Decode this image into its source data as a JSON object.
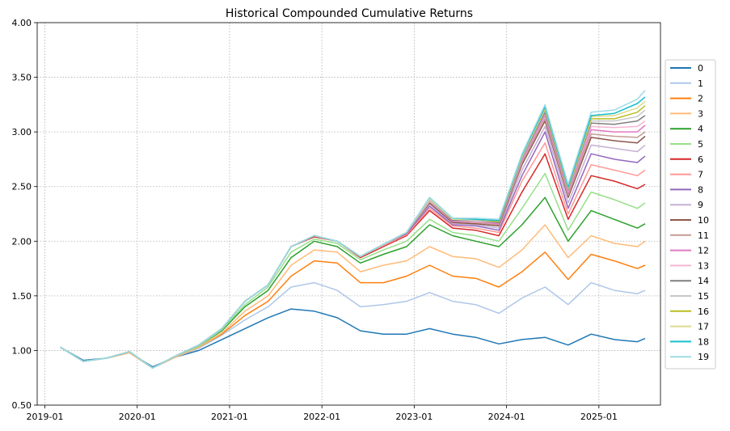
{
  "chart_data": {
    "type": "line",
    "title": "Historical Compounded Cumulative Returns",
    "xlabel": "",
    "ylabel": "",
    "xlim": [
      "2018-12-01",
      "2025-09-01"
    ],
    "ylim": [
      0.5,
      4.0
    ],
    "x_ticks": [
      "2019-01",
      "2020-01",
      "2021-01",
      "2022-01",
      "2023-01",
      "2024-01",
      "2025-01"
    ],
    "y_ticks": [
      "0.50",
      "1.00",
      "1.50",
      "2.00",
      "2.50",
      "3.00",
      "3.50",
      "4.00"
    ],
    "grid": true,
    "legend_position": "right",
    "x": [
      "2019-03",
      "2019-06",
      "2019-09",
      "2019-12",
      "2020-03",
      "2020-06",
      "2020-09",
      "2020-12",
      "2021-03",
      "2021-06",
      "2021-09",
      "2021-12",
      "2022-03",
      "2022-06",
      "2022-09",
      "2022-12",
      "2023-03",
      "2023-06",
      "2023-09",
      "2023-12",
      "2024-03",
      "2024-06",
      "2024-09",
      "2024-12",
      "2025-03",
      "2025-06",
      "2025-07"
    ],
    "series": [
      {
        "name": "0",
        "color": "#1f77b4",
        "values": [
          1.03,
          0.91,
          0.93,
          0.98,
          0.85,
          0.94,
          1.0,
          1.1,
          1.2,
          1.3,
          1.38,
          1.36,
          1.3,
          1.18,
          1.15,
          1.15,
          1.2,
          1.15,
          1.12,
          1.06,
          1.1,
          1.12,
          1.05,
          1.15,
          1.1,
          1.08,
          1.11
        ]
      },
      {
        "name": "1",
        "color": "#aec7e8",
        "values": [
          1.03,
          0.9,
          0.93,
          0.98,
          0.84,
          0.94,
          1.02,
          1.14,
          1.28,
          1.4,
          1.58,
          1.62,
          1.55,
          1.4,
          1.42,
          1.45,
          1.53,
          1.45,
          1.42,
          1.34,
          1.48,
          1.58,
          1.42,
          1.62,
          1.55,
          1.52,
          1.55
        ]
      },
      {
        "name": "2",
        "color": "#ff7f0e",
        "values": [
          1.03,
          0.9,
          0.93,
          0.98,
          0.84,
          0.94,
          1.03,
          1.15,
          1.32,
          1.45,
          1.68,
          1.82,
          1.8,
          1.62,
          1.62,
          1.68,
          1.78,
          1.68,
          1.66,
          1.58,
          1.72,
          1.9,
          1.65,
          1.88,
          1.82,
          1.75,
          1.78
        ]
      },
      {
        "name": "3",
        "color": "#ffbb78",
        "values": [
          1.03,
          0.9,
          0.93,
          0.98,
          0.84,
          0.94,
          1.03,
          1.16,
          1.36,
          1.5,
          1.78,
          1.92,
          1.9,
          1.72,
          1.78,
          1.82,
          1.95,
          1.86,
          1.84,
          1.76,
          1.92,
          2.15,
          1.85,
          2.05,
          1.98,
          1.95,
          2.0
        ]
      },
      {
        "name": "4",
        "color": "#2ca02c",
        "values": [
          1.03,
          0.9,
          0.93,
          0.99,
          0.84,
          0.95,
          1.04,
          1.18,
          1.4,
          1.55,
          1.85,
          2.0,
          1.95,
          1.8,
          1.88,
          1.95,
          2.15,
          2.05,
          2.0,
          1.95,
          2.15,
          2.4,
          2.0,
          2.28,
          2.2,
          2.12,
          2.16
        ]
      },
      {
        "name": "5",
        "color": "#98df8a",
        "values": [
          1.03,
          0.9,
          0.93,
          0.99,
          0.84,
          0.95,
          1.04,
          1.19,
          1.42,
          1.58,
          1.9,
          2.02,
          1.98,
          1.83,
          1.92,
          2.0,
          2.2,
          2.08,
          2.05,
          2.0,
          2.3,
          2.62,
          2.1,
          2.45,
          2.38,
          2.3,
          2.35
        ]
      },
      {
        "name": "6",
        "color": "#d62728",
        "values": [
          1.03,
          0.9,
          0.93,
          0.99,
          0.84,
          0.95,
          1.05,
          1.2,
          1.45,
          1.6,
          1.95,
          2.04,
          2.0,
          1.85,
          1.95,
          2.05,
          2.28,
          2.12,
          2.1,
          2.05,
          2.45,
          2.8,
          2.2,
          2.6,
          2.55,
          2.48,
          2.52
        ]
      },
      {
        "name": "7",
        "color": "#ff9896",
        "values": [
          1.03,
          0.9,
          0.93,
          0.99,
          0.84,
          0.95,
          1.05,
          1.2,
          1.45,
          1.6,
          1.95,
          2.05,
          2.0,
          1.86,
          1.96,
          2.06,
          2.3,
          2.14,
          2.12,
          2.08,
          2.55,
          2.9,
          2.25,
          2.7,
          2.65,
          2.6,
          2.65
        ]
      },
      {
        "name": "8",
        "color": "#9467bd",
        "values": [
          1.03,
          0.9,
          0.93,
          0.99,
          0.84,
          0.95,
          1.05,
          1.2,
          1.45,
          1.6,
          1.95,
          2.05,
          2.0,
          1.86,
          1.97,
          2.07,
          2.32,
          2.15,
          2.14,
          2.1,
          2.6,
          3.0,
          2.3,
          2.8,
          2.75,
          2.72,
          2.78
        ]
      },
      {
        "name": "9",
        "color": "#c5b0d5",
        "values": [
          1.03,
          0.9,
          0.93,
          0.99,
          0.84,
          0.95,
          1.05,
          1.2,
          1.45,
          1.6,
          1.95,
          2.05,
          2.0,
          1.86,
          1.97,
          2.08,
          2.34,
          2.16,
          2.15,
          2.12,
          2.65,
          3.05,
          2.35,
          2.88,
          2.85,
          2.82,
          2.88
        ]
      },
      {
        "name": "10",
        "color": "#8c564b",
        "values": [
          1.03,
          0.9,
          0.93,
          0.99,
          0.84,
          0.95,
          1.05,
          1.2,
          1.45,
          1.6,
          1.95,
          2.05,
          2.0,
          1.86,
          1.97,
          2.08,
          2.35,
          2.17,
          2.16,
          2.14,
          2.7,
          3.1,
          2.4,
          2.95,
          2.92,
          2.9,
          2.96
        ]
      },
      {
        "name": "11",
        "color": "#c49c94",
        "values": [
          1.03,
          0.9,
          0.93,
          0.99,
          0.84,
          0.95,
          1.05,
          1.2,
          1.45,
          1.6,
          1.95,
          2.05,
          2.0,
          1.86,
          1.97,
          2.08,
          2.36,
          2.18,
          2.17,
          2.15,
          2.72,
          3.12,
          2.42,
          2.98,
          2.96,
          2.95,
          3.0
        ]
      },
      {
        "name": "12",
        "color": "#e377c2",
        "values": [
          1.03,
          0.9,
          0.93,
          0.99,
          0.84,
          0.95,
          1.05,
          1.2,
          1.45,
          1.6,
          1.95,
          2.05,
          2.0,
          1.86,
          1.97,
          2.08,
          2.37,
          2.18,
          2.18,
          2.16,
          2.74,
          3.15,
          2.44,
          3.02,
          3.0,
          3.0,
          3.06
        ]
      },
      {
        "name": "13",
        "color": "#f7b6d2",
        "values": [
          1.03,
          0.9,
          0.93,
          0.99,
          0.84,
          0.95,
          1.05,
          1.2,
          1.45,
          1.6,
          1.95,
          2.05,
          2.0,
          1.86,
          1.97,
          2.08,
          2.37,
          2.19,
          2.18,
          2.17,
          2.75,
          3.17,
          2.46,
          3.05,
          3.04,
          3.05,
          3.1
        ]
      },
      {
        "name": "14",
        "color": "#7f7f7f",
        "values": [
          1.03,
          0.9,
          0.93,
          0.99,
          0.84,
          0.95,
          1.05,
          1.2,
          1.45,
          1.6,
          1.95,
          2.05,
          2.0,
          1.86,
          1.97,
          2.08,
          2.38,
          2.19,
          2.19,
          2.17,
          2.76,
          3.18,
          2.47,
          3.08,
          3.07,
          3.1,
          3.15
        ]
      },
      {
        "name": "15",
        "color": "#c7c7c7",
        "values": [
          1.03,
          0.9,
          0.93,
          0.99,
          0.84,
          0.95,
          1.05,
          1.2,
          1.45,
          1.6,
          1.95,
          2.05,
          2.0,
          1.86,
          1.97,
          2.08,
          2.38,
          2.2,
          2.19,
          2.18,
          2.77,
          3.2,
          2.48,
          3.1,
          3.1,
          3.14,
          3.2
        ]
      },
      {
        "name": "16",
        "color": "#bcbd22",
        "values": [
          1.03,
          0.9,
          0.93,
          0.99,
          0.84,
          0.95,
          1.05,
          1.2,
          1.45,
          1.6,
          1.95,
          2.05,
          2.0,
          1.86,
          1.97,
          2.08,
          2.39,
          2.2,
          2.2,
          2.18,
          2.78,
          3.21,
          2.49,
          3.12,
          3.12,
          3.18,
          3.24
        ]
      },
      {
        "name": "17",
        "color": "#dbdb8d",
        "values": [
          1.03,
          0.9,
          0.93,
          0.99,
          0.84,
          0.95,
          1.05,
          1.2,
          1.45,
          1.6,
          1.95,
          2.05,
          2.0,
          1.86,
          1.97,
          2.08,
          2.39,
          2.2,
          2.2,
          2.19,
          2.78,
          3.22,
          2.5,
          3.14,
          3.15,
          3.22,
          3.28
        ]
      },
      {
        "name": "18",
        "color": "#17becf",
        "values": [
          1.03,
          0.9,
          0.93,
          0.99,
          0.84,
          0.95,
          1.05,
          1.2,
          1.45,
          1.6,
          1.95,
          2.05,
          2.0,
          1.86,
          1.97,
          2.08,
          2.4,
          2.21,
          2.2,
          2.19,
          2.79,
          3.23,
          2.5,
          3.15,
          3.17,
          3.26,
          3.32
        ]
      },
      {
        "name": "19",
        "color": "#9edae5",
        "values": [
          1.03,
          0.9,
          0.93,
          0.99,
          0.84,
          0.95,
          1.05,
          1.2,
          1.45,
          1.6,
          1.95,
          2.05,
          2.0,
          1.86,
          1.97,
          2.08,
          2.4,
          2.21,
          2.21,
          2.2,
          2.8,
          3.25,
          2.52,
          3.18,
          3.2,
          3.3,
          3.38
        ]
      }
    ]
  }
}
